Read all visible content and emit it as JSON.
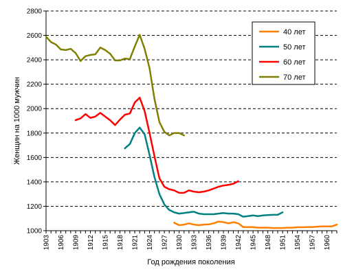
{
  "chart_data": {
    "type": "line",
    "title": "",
    "xlabel": "Год рождения поколения",
    "ylabel": "Женщин на 1000 мужчин",
    "xlim": [
      1903,
      1962
    ],
    "ylim": [
      1000,
      2800
    ],
    "yticks": [
      1000,
      1200,
      1400,
      1600,
      1800,
      2000,
      2200,
      2400,
      2600,
      2800
    ],
    "xticks": [
      1903,
      1906,
      1909,
      1912,
      1915,
      1918,
      1921,
      1924,
      1927,
      1930,
      1933,
      1936,
      1939,
      1942,
      1945,
      1948,
      1951,
      1954,
      1957,
      1960
    ],
    "grid": "horizontal-dashed",
    "legend_position": "top-right",
    "series": [
      {
        "name": "40 лет",
        "color": "#ff8000",
        "points": [
          [
            1929,
            1065
          ],
          [
            1930,
            1045
          ],
          [
            1931,
            1050
          ],
          [
            1932,
            1060
          ],
          [
            1933,
            1050
          ],
          [
            1934,
            1045
          ],
          [
            1935,
            1050
          ],
          [
            1936,
            1052
          ],
          [
            1937,
            1060
          ],
          [
            1938,
            1075
          ],
          [
            1939,
            1070
          ],
          [
            1940,
            1060
          ],
          [
            1941,
            1070
          ],
          [
            1942,
            1060
          ],
          [
            1943,
            1030
          ],
          [
            1944,
            1030
          ],
          [
            1945,
            1030
          ],
          [
            1946,
            1025
          ],
          [
            1947,
            1025
          ],
          [
            1948,
            1025
          ],
          [
            1949,
            1022
          ],
          [
            1950,
            1022
          ],
          [
            1951,
            1022
          ],
          [
            1952,
            1025
          ],
          [
            1953,
            1025
          ],
          [
            1954,
            1028
          ],
          [
            1955,
            1028
          ],
          [
            1956,
            1030
          ],
          [
            1957,
            1030
          ],
          [
            1958,
            1033
          ],
          [
            1959,
            1035
          ],
          [
            1960,
            1035
          ],
          [
            1961,
            1035
          ],
          [
            1962,
            1050
          ]
        ]
      },
      {
        "name": "50 лет",
        "color": "#008080",
        "points": [
          [
            1919,
            1675
          ],
          [
            1920,
            1710
          ],
          [
            1921,
            1800
          ],
          [
            1922,
            1845
          ],
          [
            1923,
            1790
          ],
          [
            1924,
            1620
          ],
          [
            1925,
            1440
          ],
          [
            1926,
            1300
          ],
          [
            1927,
            1215
          ],
          [
            1928,
            1170
          ],
          [
            1929,
            1150
          ],
          [
            1930,
            1140
          ],
          [
            1931,
            1145
          ],
          [
            1932,
            1150
          ],
          [
            1933,
            1155
          ],
          [
            1934,
            1140
          ],
          [
            1935,
            1135
          ],
          [
            1936,
            1135
          ],
          [
            1937,
            1135
          ],
          [
            1938,
            1140
          ],
          [
            1939,
            1145
          ],
          [
            1940,
            1140
          ],
          [
            1941,
            1140
          ],
          [
            1942,
            1135
          ],
          [
            1943,
            1115
          ],
          [
            1944,
            1120
          ],
          [
            1945,
            1125
          ],
          [
            1946,
            1120
          ],
          [
            1947,
            1125
          ],
          [
            1948,
            1128
          ],
          [
            1949,
            1130
          ],
          [
            1950,
            1130
          ],
          [
            1951,
            1150
          ]
        ]
      },
      {
        "name": "60 лет",
        "color": "#ff0000",
        "points": [
          [
            1909,
            1905
          ],
          [
            1910,
            1920
          ],
          [
            1911,
            1955
          ],
          [
            1912,
            1925
          ],
          [
            1913,
            1935
          ],
          [
            1914,
            1965
          ],
          [
            1915,
            1935
          ],
          [
            1916,
            1905
          ],
          [
            1917,
            1865
          ],
          [
            1918,
            1910
          ],
          [
            1919,
            1950
          ],
          [
            1920,
            1960
          ],
          [
            1921,
            2050
          ],
          [
            1922,
            2090
          ],
          [
            1923,
            1980
          ],
          [
            1924,
            1800
          ],
          [
            1925,
            1610
          ],
          [
            1926,
            1430
          ],
          [
            1927,
            1360
          ],
          [
            1928,
            1340
          ],
          [
            1929,
            1330
          ],
          [
            1930,
            1310
          ],
          [
            1931,
            1310
          ],
          [
            1932,
            1330
          ],
          [
            1933,
            1320
          ],
          [
            1934,
            1315
          ],
          [
            1935,
            1320
          ],
          [
            1936,
            1330
          ],
          [
            1937,
            1345
          ],
          [
            1938,
            1360
          ],
          [
            1939,
            1370
          ],
          [
            1940,
            1375
          ],
          [
            1941,
            1385
          ],
          [
            1942,
            1405
          ]
        ]
      },
      {
        "name": "70 лет",
        "color": "#808000",
        "points": [
          [
            1903,
            2590
          ],
          [
            1904,
            2545
          ],
          [
            1905,
            2525
          ],
          [
            1906,
            2485
          ],
          [
            1907,
            2480
          ],
          [
            1908,
            2490
          ],
          [
            1909,
            2455
          ],
          [
            1910,
            2390
          ],
          [
            1911,
            2430
          ],
          [
            1912,
            2440
          ],
          [
            1913,
            2445
          ],
          [
            1914,
            2500
          ],
          [
            1915,
            2480
          ],
          [
            1916,
            2450
          ],
          [
            1917,
            2395
          ],
          [
            1918,
            2395
          ],
          [
            1919,
            2410
          ],
          [
            1920,
            2405
          ],
          [
            1921,
            2510
          ],
          [
            1922,
            2605
          ],
          [
            1923,
            2490
          ],
          [
            1924,
            2330
          ],
          [
            1925,
            2080
          ],
          [
            1926,
            1890
          ],
          [
            1927,
            1810
          ],
          [
            1928,
            1780
          ],
          [
            1929,
            1800
          ],
          [
            1930,
            1800
          ],
          [
            1931,
            1780
          ]
        ]
      }
    ]
  }
}
